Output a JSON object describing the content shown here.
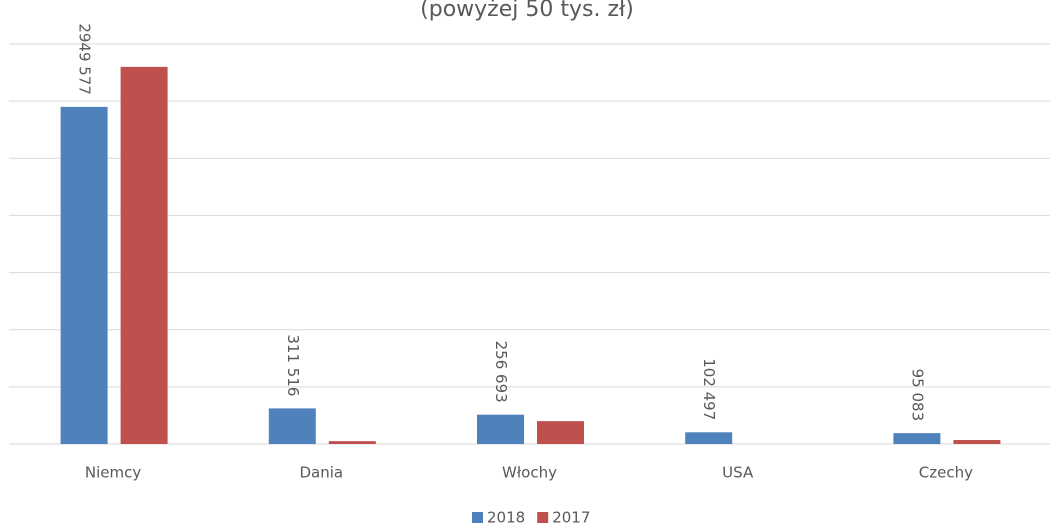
{
  "chart_data": {
    "type": "bar",
    "subtitle": "(powyżej 50 tys. zł)",
    "categories": [
      "Niemcy",
      "Dania",
      "Włochy",
      "USA",
      "Czechy"
    ],
    "series": [
      {
        "name": "2018",
        "color": "#4f81bd",
        "values": [
          2949577,
          311516,
          256693,
          102497,
          95083
        ],
        "value_labels": [
          "2949 577",
          "311 516",
          "256 693",
          "102 497",
          "95 083"
        ]
      },
      {
        "name": "2017",
        "color": "#c0504d",
        "values": [
          3300000,
          25000,
          200000,
          0,
          35000
        ]
      }
    ],
    "ylim": [
      0,
      3500000
    ],
    "yticks": [
      0,
      500000,
      1000000,
      1500000,
      2000000,
      2500000,
      3000000,
      3500000
    ],
    "grid": true,
    "legend": "bottom"
  }
}
